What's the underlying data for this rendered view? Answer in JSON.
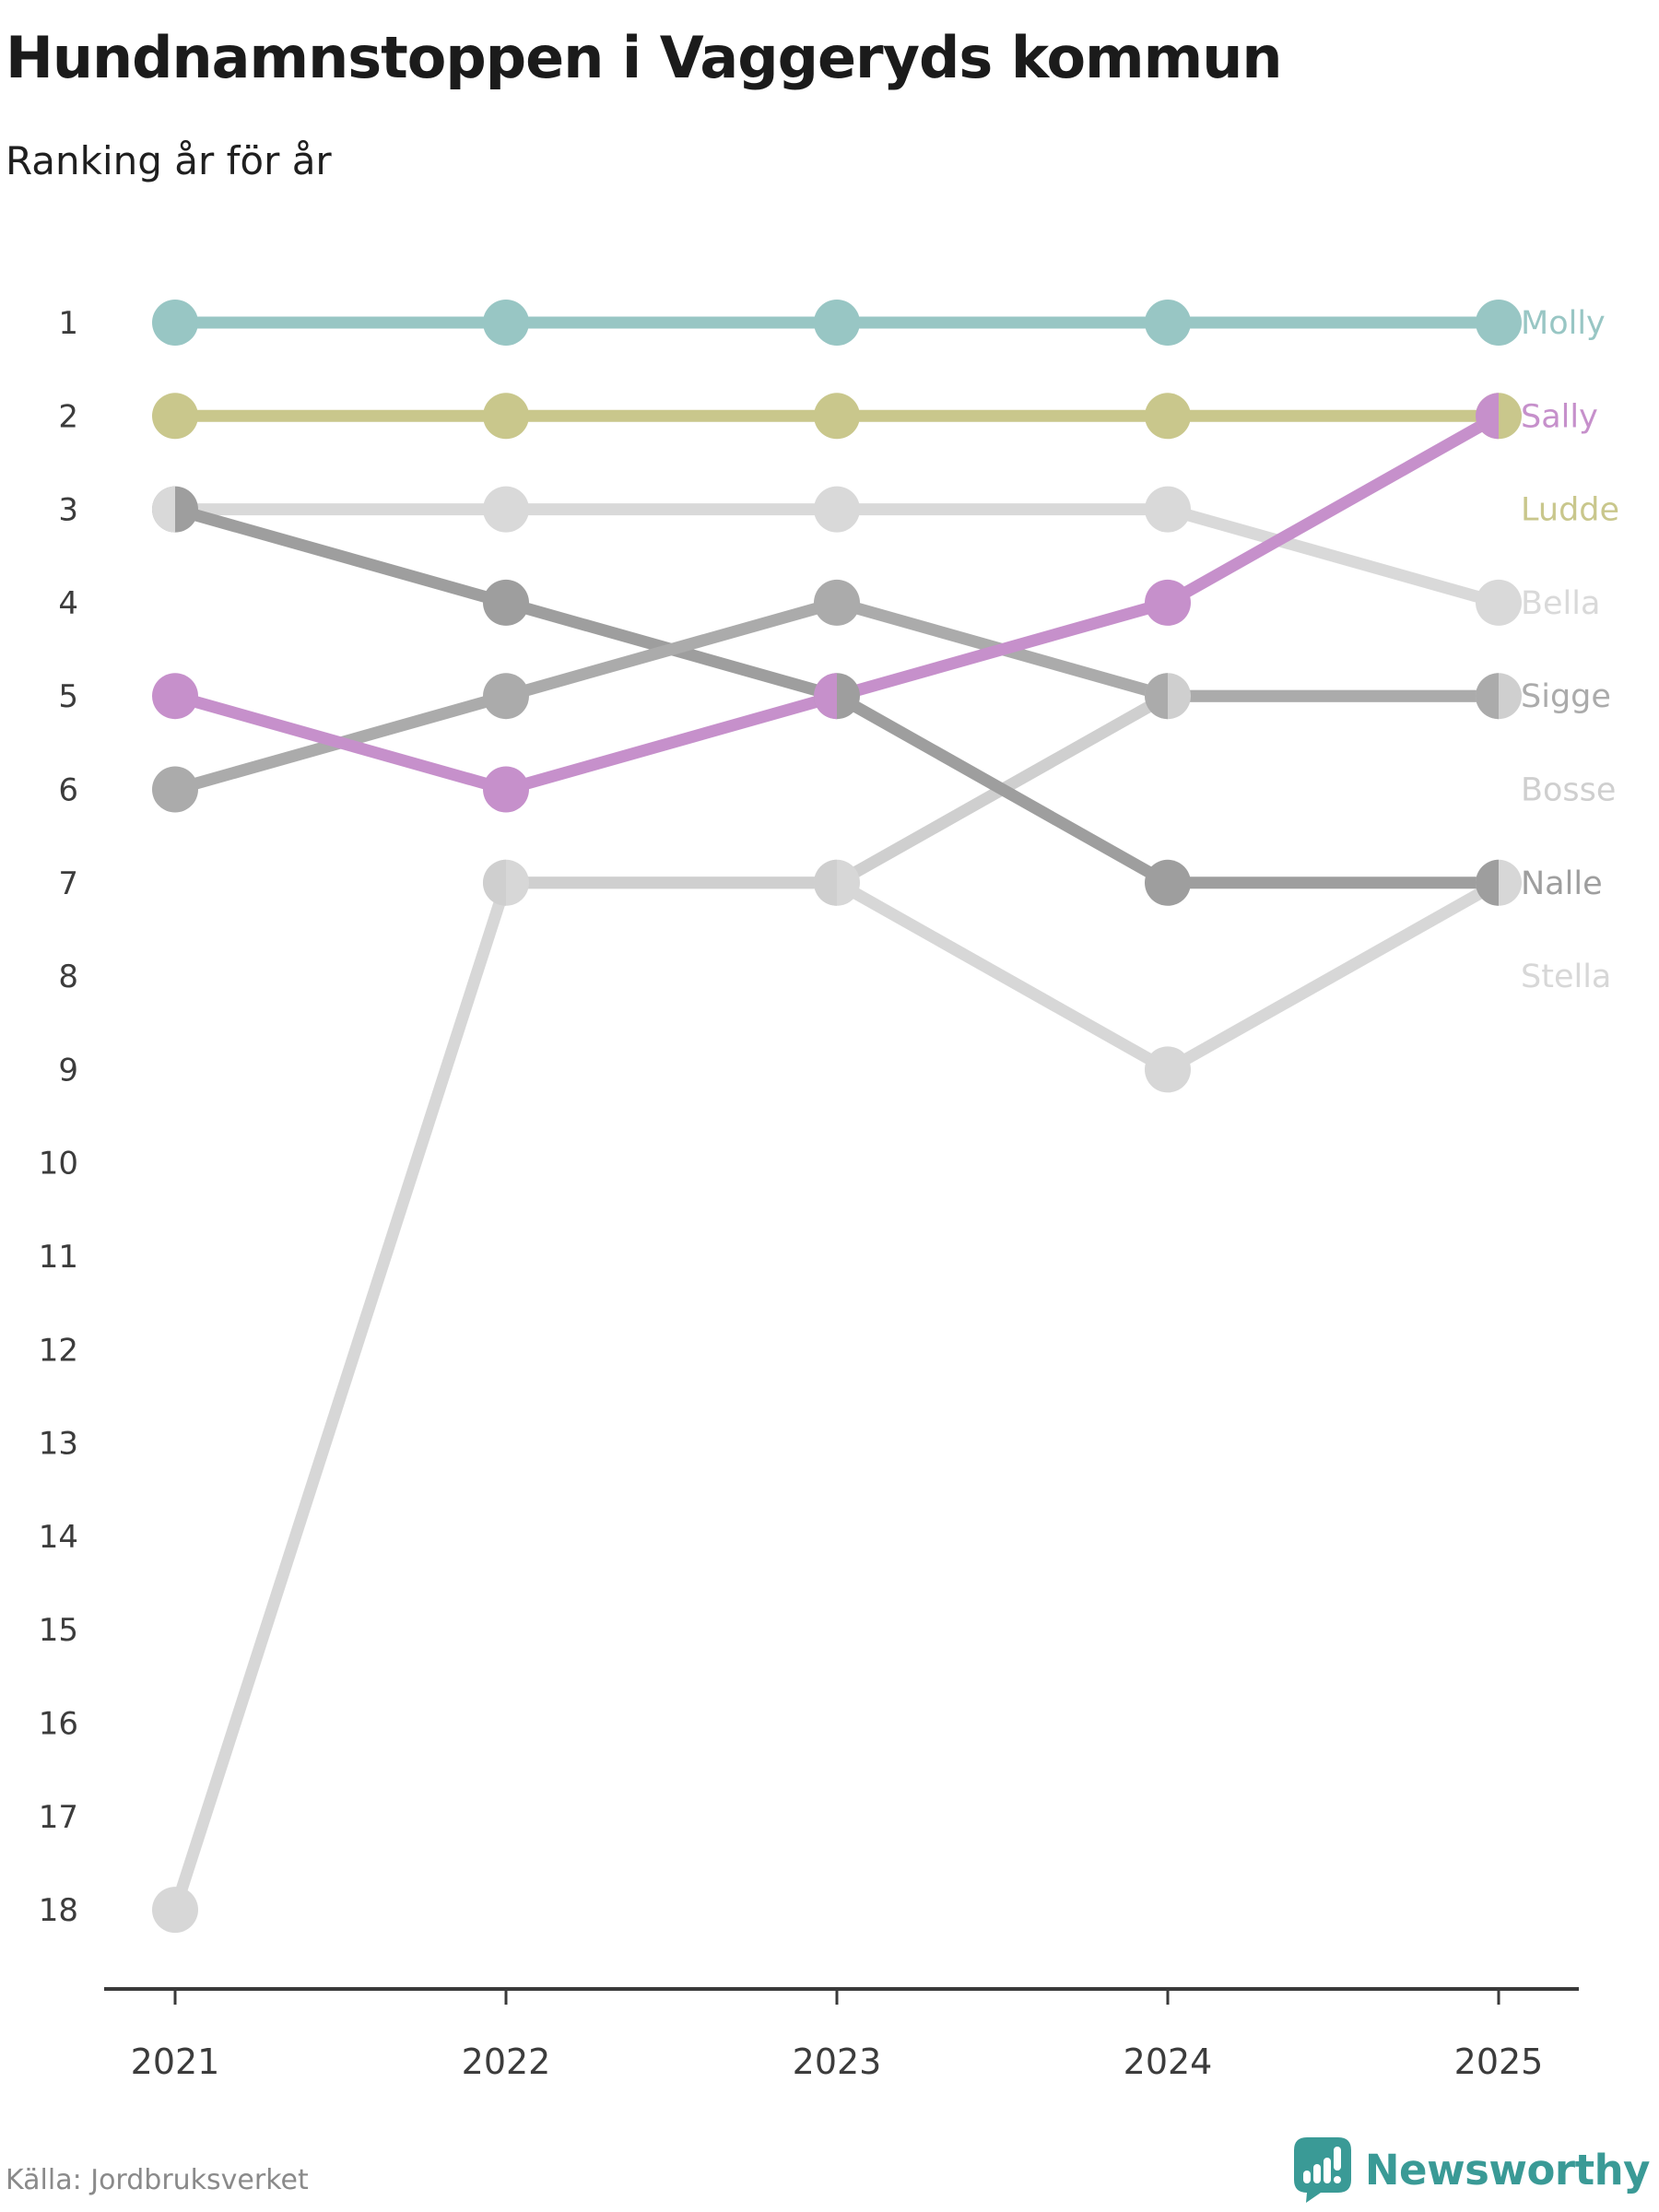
{
  "header": {
    "title": "Hundnamnstoppen i Vaggeryds kommun",
    "subtitle": "Ranking år för år"
  },
  "footer": {
    "source": "Källa: Jordbruksverket",
    "brand": "Newsworthy",
    "brand_color": "#3a9a96",
    "brand_icon": "newsworthy-speech-bubble-bar-chart-icon"
  },
  "chart_data": {
    "type": "line",
    "variant": "bump-ranking",
    "title": "Hundnamnstoppen i Vaggeryds kommun",
    "subtitle": "Ranking år för år",
    "x": [
      2021,
      2022,
      2023,
      2024,
      2025
    ],
    "y_ticks": [
      1,
      2,
      3,
      4,
      5,
      6,
      7,
      8,
      9,
      10,
      11,
      12,
      13,
      14,
      15,
      16,
      17,
      18
    ],
    "ylim": [
      1,
      18
    ],
    "y_inverted": true,
    "grid": false,
    "legend_position": "right",
    "axis_color": "#3a3a3a",
    "tick_label_color": "#3c3c3c",
    "series": [
      {
        "name": "Molly",
        "color": "#98c6c4",
        "ranks": [
          1,
          1,
          1,
          1,
          1
        ],
        "label_rank": 1
      },
      {
        "name": "Sally",
        "color": "#c690cb",
        "ranks": [
          5,
          6,
          5,
          4,
          2
        ],
        "label_rank": 2
      },
      {
        "name": "Ludde",
        "color": "#c9c78c",
        "ranks": [
          2,
          2,
          2,
          2,
          2
        ],
        "label_rank": 3
      },
      {
        "name": "Bella",
        "color": "#d9d9d9",
        "ranks": [
          3,
          3,
          3,
          3,
          4
        ],
        "label_rank": 4
      },
      {
        "name": "Sigge",
        "color": "#ababab",
        "ranks": [
          6,
          5,
          4,
          5,
          5
        ],
        "label_rank": 5
      },
      {
        "name": "Bosse",
        "color": "#cfcfcf",
        "ranks": [
          null,
          7,
          7,
          5,
          5
        ],
        "label_rank": 6
      },
      {
        "name": "Nalle",
        "color": "#9e9e9e",
        "ranks": [
          3,
          4,
          5,
          7,
          7
        ],
        "label_rank": 7
      },
      {
        "name": "Stella",
        "color": "#d7d7d7",
        "ranks": [
          18,
          7,
          7,
          9,
          7
        ],
        "label_rank": 8
      }
    ],
    "line_draw_order": [
      "Stella",
      "Bosse",
      "Bella",
      "Nalle",
      "Sigge",
      "Sally",
      "Ludde",
      "Molly"
    ]
  }
}
